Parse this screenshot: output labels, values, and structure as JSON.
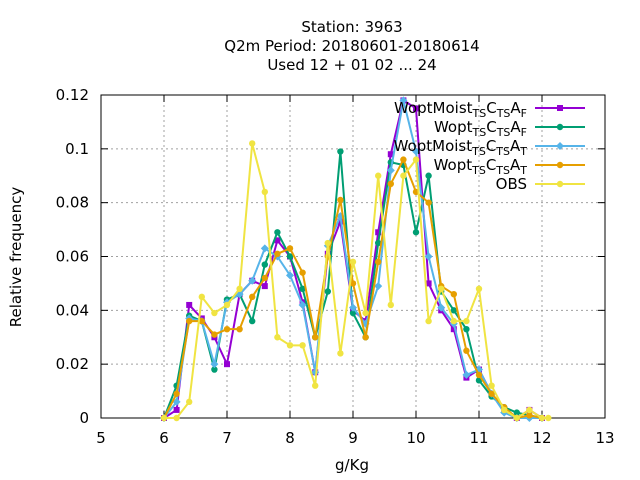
{
  "chart_data": {
    "type": "line",
    "title_lines": [
      "Station:     3963",
      "Q2m  Period: 20180601-20180614",
      "Used  12 + 01 02 ... 24"
    ],
    "xlabel": "g/Kg",
    "ylabel": "Relative frequency",
    "xlim": [
      5,
      13
    ],
    "ylim": [
      0,
      0.12
    ],
    "xticks": [
      5,
      6,
      7,
      8,
      9,
      10,
      11,
      12,
      13
    ],
    "xtick_labels": [
      "5",
      "6",
      "7",
      "8",
      "9",
      "10",
      "11",
      "12",
      "13"
    ],
    "yticks": [
      0,
      0.02,
      0.04,
      0.06,
      0.08,
      0.1,
      0.12
    ],
    "ytick_labels": [
      "0",
      "0.02",
      "0.04",
      "0.06",
      "0.08",
      "0.1",
      "0.12"
    ],
    "grid": true,
    "legend_position": "top-right",
    "series": [
      {
        "name_main": "WoptMoist",
        "name_sub1": "TS",
        "name_mid": "C",
        "name_sub2": "TS",
        "name_end": "A",
        "name_sub3": "F",
        "color": "#9400d3",
        "marker": "square",
        "x": [
          6.0,
          6.2,
          6.4,
          6.6,
          6.8,
          7.0,
          7.2,
          7.4,
          7.6,
          7.8,
          8.0,
          8.2,
          8.4,
          8.6,
          8.8,
          9.0,
          9.2,
          9.4,
          9.6,
          9.8,
          10.0,
          10.2,
          10.4,
          10.6,
          10.8,
          11.0,
          11.2,
          11.4,
          11.6,
          11.8,
          12.0
        ],
        "y": [
          0.0,
          0.003,
          0.042,
          0.037,
          0.03,
          0.02,
          0.046,
          0.051,
          0.049,
          0.066,
          0.06,
          0.043,
          0.017,
          0.061,
          0.073,
          0.04,
          0.036,
          0.069,
          0.098,
          0.118,
          0.115,
          0.05,
          0.04,
          0.033,
          0.015,
          0.018,
          0.009,
          0.003,
          0.0,
          0.003,
          0.0
        ]
      },
      {
        "name_main": "Wopt",
        "name_sub1": "TS",
        "name_mid": "C",
        "name_sub2": "TS",
        "name_end": "A",
        "name_sub3": "F",
        "color": "#009e73",
        "marker": "circle",
        "x": [
          6.0,
          6.2,
          6.4,
          6.6,
          6.8,
          7.0,
          7.2,
          7.4,
          7.6,
          7.8,
          8.0,
          8.2,
          8.4,
          8.6,
          8.8,
          9.0,
          9.2,
          9.4,
          9.6,
          9.8,
          10.0,
          10.2,
          10.4,
          10.6,
          10.8,
          11.0,
          11.2,
          11.4,
          11.6,
          11.8,
          12.0
        ],
        "y": [
          0.0,
          0.012,
          0.038,
          0.036,
          0.018,
          0.044,
          0.046,
          0.036,
          0.057,
          0.069,
          0.06,
          0.048,
          0.03,
          0.047,
          0.099,
          0.039,
          0.03,
          0.065,
          0.095,
          0.094,
          0.069,
          0.09,
          0.047,
          0.04,
          0.033,
          0.014,
          0.008,
          0.004,
          0.002,
          0.001,
          0.0
        ]
      },
      {
        "name_main": "WoptMoist",
        "name_sub1": "TS",
        "name_mid": "C",
        "name_sub2": "TS",
        "name_end": "A",
        "name_sub3": "T",
        "color": "#56b4e9",
        "marker": "diamond",
        "x": [
          6.0,
          6.2,
          6.4,
          6.6,
          6.8,
          7.0,
          7.2,
          7.4,
          7.6,
          7.8,
          8.0,
          8.2,
          8.4,
          8.6,
          8.8,
          9.0,
          9.2,
          9.4,
          9.6,
          9.8,
          10.0,
          10.2,
          10.4,
          10.6,
          10.8,
          11.0,
          11.2,
          11.4,
          11.6,
          11.8,
          12.0
        ],
        "y": [
          0.0,
          0.006,
          0.037,
          0.036,
          0.02,
          0.043,
          0.046,
          0.051,
          0.063,
          0.06,
          0.053,
          0.042,
          0.017,
          0.064,
          0.075,
          0.041,
          0.035,
          0.049,
          0.092,
          0.118,
          0.099,
          0.06,
          0.041,
          0.035,
          0.016,
          0.018,
          0.009,
          0.002,
          0.0,
          0.0,
          0.0
        ]
      },
      {
        "name_main": "Wopt",
        "name_sub1": "TS",
        "name_mid": "C",
        "name_sub2": "TS",
        "name_end": "A",
        "name_sub3": "T",
        "color": "#e69f00",
        "marker": "circle",
        "x": [
          6.0,
          6.2,
          6.4,
          6.6,
          6.8,
          7.0,
          7.2,
          7.4,
          7.6,
          7.8,
          8.0,
          8.2,
          8.4,
          8.6,
          8.8,
          9.0,
          9.2,
          9.4,
          9.6,
          9.8,
          10.0,
          10.2,
          10.4,
          10.6,
          10.8,
          11.0,
          11.2,
          11.4,
          11.6,
          11.8,
          12.0
        ],
        "y": [
          0.0,
          0.009,
          0.036,
          0.036,
          0.031,
          0.033,
          0.033,
          0.045,
          0.052,
          0.061,
          0.063,
          0.054,
          0.03,
          0.06,
          0.081,
          0.05,
          0.03,
          0.058,
          0.087,
          0.096,
          0.084,
          0.08,
          0.049,
          0.046,
          0.025,
          0.016,
          0.009,
          0.004,
          0.0,
          0.001,
          0.0
        ]
      },
      {
        "name_main": "OBS",
        "color": "#f0e442",
        "marker": "circle",
        "x": [
          6.0,
          6.2,
          6.4,
          6.6,
          6.8,
          7.0,
          7.2,
          7.4,
          7.6,
          7.8,
          8.0,
          8.2,
          8.4,
          8.6,
          8.8,
          9.0,
          9.2,
          9.4,
          9.6,
          9.8,
          10.0,
          10.2,
          10.4,
          10.6,
          10.8,
          11.0,
          11.2,
          11.4,
          11.6,
          11.8,
          12.0,
          12.1
        ],
        "y": [
          0.0,
          0.0,
          0.006,
          0.045,
          0.039,
          0.042,
          0.048,
          0.102,
          0.084,
          0.03,
          0.027,
          0.027,
          0.012,
          0.065,
          0.024,
          0.058,
          0.039,
          0.09,
          0.042,
          0.09,
          0.096,
          0.036,
          0.048,
          0.036,
          0.036,
          0.048,
          0.012,
          0.003,
          0.0,
          0.003,
          0.0,
          0.0
        ]
      }
    ]
  }
}
